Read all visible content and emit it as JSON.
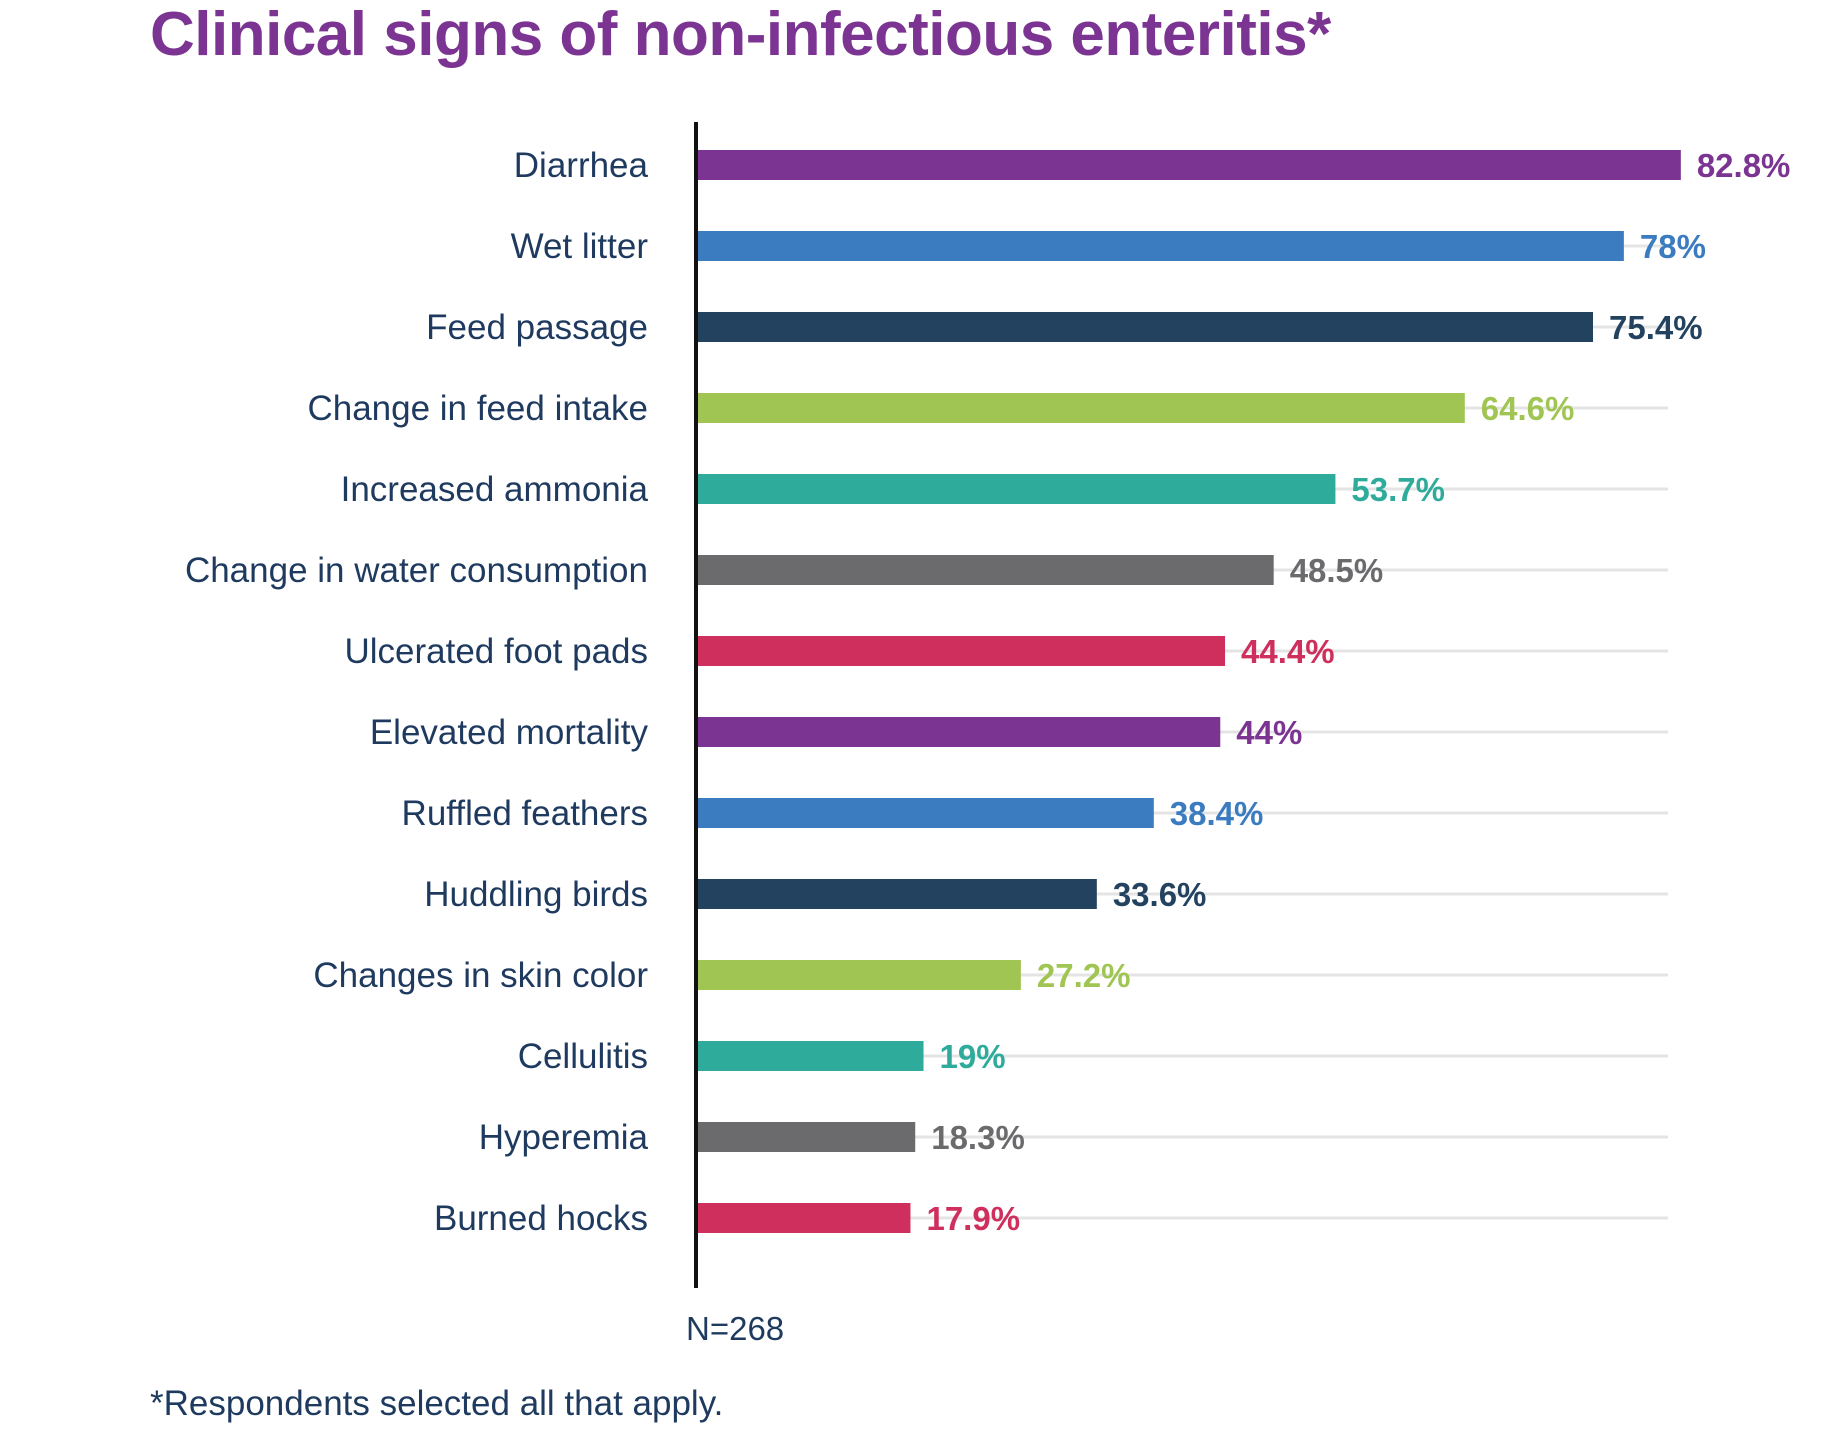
{
  "chart_data": {
    "type": "bar",
    "orientation": "horizontal",
    "title": "Clinical signs of non-infectious enteritis*",
    "categories": [
      "Diarrhea",
      "Wet litter",
      "Feed passage",
      "Change in feed intake",
      "Increased ammonia",
      "Change in water consumption",
      "Ulcerated foot pads",
      "Elevated mortality",
      "Ruffled feathers",
      "Huddling birds",
      "Changes in skin color",
      "Cellulitis",
      "Hyperemia",
      "Burned hocks"
    ],
    "values": [
      82.8,
      78,
      75.4,
      64.6,
      53.7,
      48.5,
      44.4,
      44,
      38.4,
      33.6,
      27.2,
      19,
      18.3,
      17.9
    ],
    "value_labels": [
      "82.8%",
      "78%",
      "75.4%",
      "64.6%",
      "53.7%",
      "48.5%",
      "44.4%",
      "44%",
      "38.4%",
      "33.6%",
      "27.2%",
      "19%",
      "18.3%",
      "17.9%"
    ],
    "colors": [
      "#7b3491",
      "#3b7bc0",
      "#23425f",
      "#a0c552",
      "#2eab9b",
      "#6b6b6e",
      "#cf2f5c",
      "#7b3491",
      "#3b7bc0",
      "#23425f",
      "#a0c552",
      "#2eab9b",
      "#6b6b6e",
      "#cf2f5c"
    ],
    "xlim": [
      0,
      100
    ],
    "xlabel": "",
    "ylabel": "",
    "grid": true,
    "legend": "none",
    "sample_size": "N=268",
    "footnote": "*Respondents selected all that apply."
  }
}
